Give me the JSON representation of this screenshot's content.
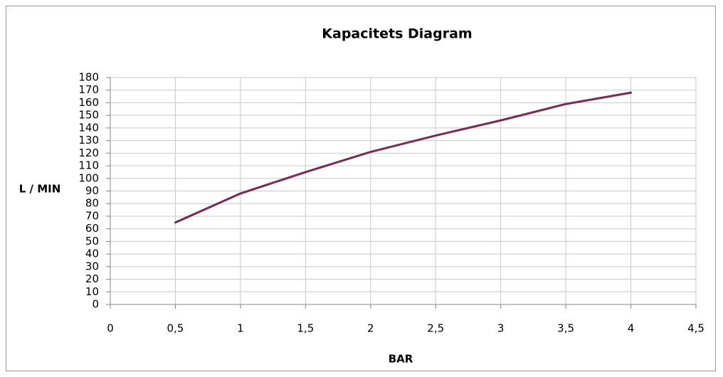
{
  "chart_data": {
    "type": "line",
    "title": "Kapacitets Diagram",
    "x_label": "BAR",
    "y_label": "L / MIN",
    "x": [
      0.5,
      1,
      1.5,
      2,
      2.5,
      3,
      3.5,
      4
    ],
    "values": [
      65,
      88,
      105,
      121,
      134,
      146,
      159,
      168
    ],
    "color": "#7b2a55",
    "xlim": [
      0,
      4.5
    ],
    "xticks": [
      0,
      {
        "value": 0.5,
        "label": "0,5"
      },
      1,
      {
        "value": 1.5,
        "label": "1,5"
      },
      2,
      {
        "value": 2.5,
        "label": "2,5"
      },
      3,
      {
        "value": 3.5,
        "label": "3,5"
      },
      4,
      {
        "value": 4.5,
        "label": "4,5"
      }
    ],
    "ylim": [
      0,
      180
    ],
    "yticks": [
      0,
      10,
      20,
      30,
      40,
      50,
      60,
      70,
      80,
      90,
      100,
      110,
      120,
      130,
      140,
      150,
      160,
      170,
      180
    ],
    "grid": true
  }
}
